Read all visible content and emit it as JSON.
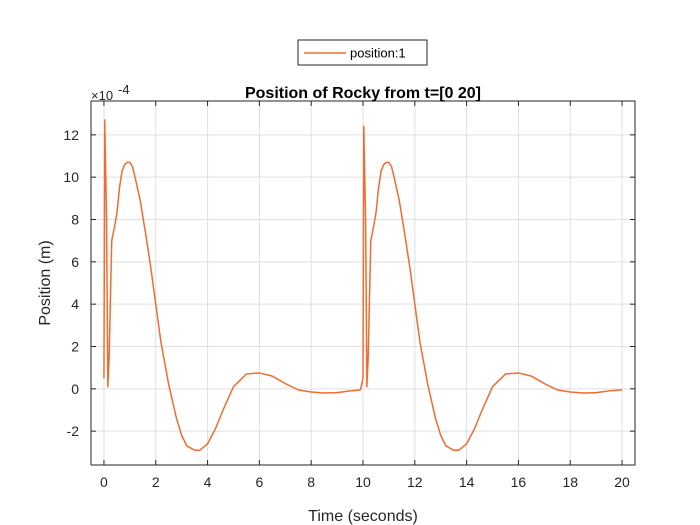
{
  "chart_data": {
    "type": "line",
    "title": "Position of Rocky from t=[0 20]",
    "xlabel": "Time (seconds)",
    "ylabel": "Position (m)",
    "y_exponent_base": "×10",
    "y_exponent_power": "-4",
    "xlim": [
      -0.5,
      20.5
    ],
    "ylim": [
      -3.6,
      13.6
    ],
    "x_ticks": [
      0,
      2,
      4,
      6,
      8,
      10,
      12,
      14,
      16,
      18,
      20
    ],
    "y_ticks": [
      -2,
      0,
      2,
      4,
      6,
      8,
      10,
      12
    ],
    "grid": true,
    "legend_position": "top-center",
    "series": [
      {
        "name": "position:1",
        "color": "#f26b2f",
        "x": [
          0,
          0.03,
          0.1,
          0.15,
          0.2,
          0.3,
          0.4,
          0.5,
          0.6,
          0.7,
          0.8,
          0.9,
          1.0,
          1.1,
          1.2,
          1.4,
          1.6,
          1.8,
          2.0,
          2.2,
          2.5,
          2.8,
          3.0,
          3.2,
          3.5,
          3.7,
          4.0,
          4.3,
          4.6,
          5.0,
          5.5,
          6.0,
          6.5,
          7.0,
          7.5,
          8.0,
          8.5,
          9.0,
          9.5,
          9.9,
          10.0,
          10.03,
          10.1,
          10.15,
          10.2,
          10.3,
          10.4,
          10.5,
          10.6,
          10.7,
          10.8,
          10.9,
          11.0,
          11.1,
          11.2,
          11.4,
          11.6,
          11.8,
          12.0,
          12.2,
          12.5,
          12.8,
          13.0,
          13.2,
          13.5,
          13.7,
          14.0,
          14.3,
          14.6,
          15.0,
          15.5,
          16.0,
          16.5,
          17.0,
          17.5,
          18.0,
          18.5,
          19.0,
          19.5,
          20.0
        ],
        "y": [
          0.5,
          12.7,
          8.0,
          0.1,
          1.5,
          7.0,
          7.6,
          8.3,
          9.5,
          10.3,
          10.6,
          10.7,
          10.7,
          10.5,
          10.0,
          8.9,
          7.4,
          5.8,
          4.0,
          2.2,
          0.2,
          -1.4,
          -2.2,
          -2.7,
          -2.9,
          -2.9,
          -2.6,
          -1.9,
          -1.0,
          0.1,
          0.7,
          0.75,
          0.6,
          0.25,
          -0.05,
          -0.15,
          -0.2,
          -0.18,
          -0.1,
          -0.05,
          0.5,
          12.4,
          8.0,
          0.1,
          1.5,
          7.0,
          7.6,
          8.3,
          9.5,
          10.3,
          10.6,
          10.7,
          10.7,
          10.5,
          10.0,
          8.9,
          7.4,
          5.8,
          4.0,
          2.2,
          0.2,
          -1.4,
          -2.2,
          -2.7,
          -2.9,
          -2.9,
          -2.6,
          -1.9,
          -1.0,
          0.1,
          0.7,
          0.75,
          0.6,
          0.25,
          -0.05,
          -0.15,
          -0.2,
          -0.18,
          -0.1,
          -0.05
        ]
      }
    ]
  }
}
